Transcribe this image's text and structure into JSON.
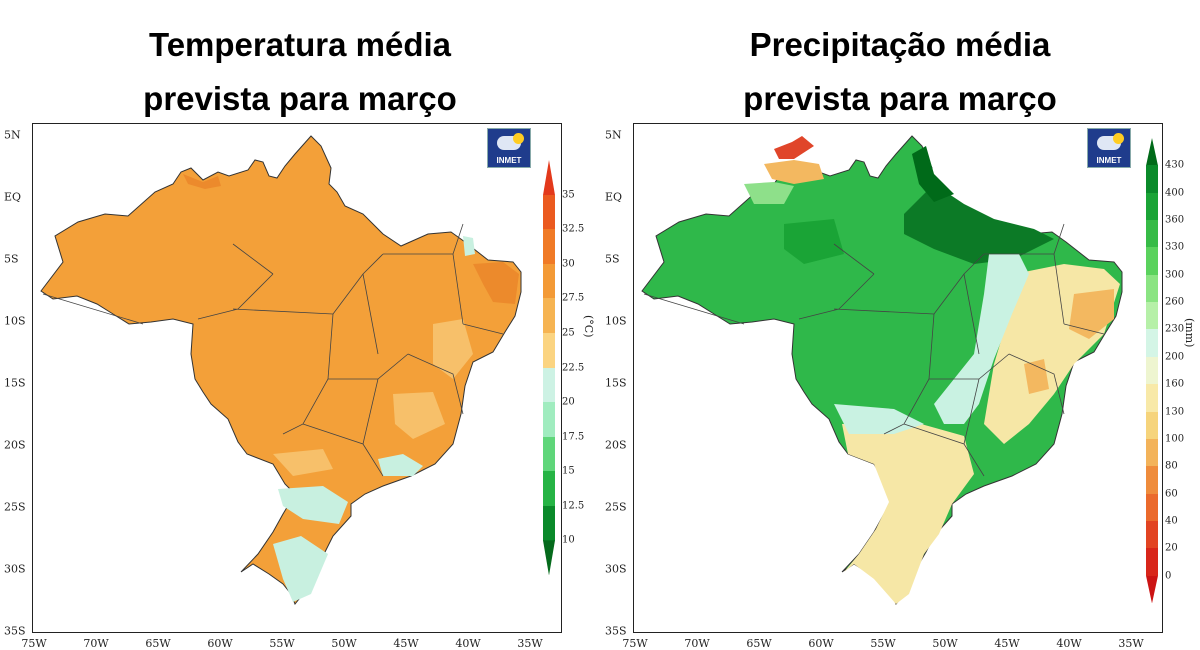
{
  "panels": [
    {
      "title_line1": "Temperatura média",
      "title_line2": "prevista para março",
      "logo_text": "INMET",
      "unit": "(°C)",
      "y_ticks": [
        "5N",
        "EQ",
        "5S",
        "10S",
        "15S",
        "20S",
        "25S",
        "30S",
        "35S"
      ],
      "x_ticks": [
        "75W",
        "70W",
        "65W",
        "60W",
        "55W",
        "50W",
        "45W",
        "40W",
        "35W"
      ],
      "legend": {
        "labels": [
          "35",
          "32.5",
          "30",
          "27.5",
          "25",
          "22.5",
          "20",
          "17.5",
          "15",
          "12.5",
          "10"
        ],
        "colors": [
          "#e3391b",
          "#eb5a1f",
          "#f07a26",
          "#f39a36",
          "#f6b452",
          "#fbd481",
          "#cdf2e4",
          "#a0ecbf",
          "#5fd67a",
          "#26b445",
          "#0a8a2a",
          "#056a1c"
        ]
      },
      "map_colors": {
        "base": "#f3a039",
        "dark": "#ec8a2c",
        "light": "#f7c06a",
        "cool": "#c8f0e0"
      }
    },
    {
      "title_line1": "Precipitação média",
      "title_line2": "prevista para março",
      "logo_text": "INMET",
      "unit": "(mm)",
      "y_ticks": [
        "5N",
        "EQ",
        "5S",
        "10S",
        "15S",
        "20S",
        "25S",
        "30S",
        "35S"
      ],
      "x_ticks": [
        "75W",
        "70W",
        "65W",
        "60W",
        "55W",
        "50W",
        "45W",
        "40W",
        "35W"
      ],
      "legend": {
        "labels": [
          "430",
          "400",
          "360",
          "330",
          "300",
          "260",
          "230",
          "200",
          "160",
          "130",
          "100",
          "80",
          "60",
          "40",
          "20",
          "0"
        ],
        "colors": [
          "#006a19",
          "#0a8a2a",
          "#1aa436",
          "#36bb46",
          "#5ad25d",
          "#8ae482",
          "#b6f0a8",
          "#d4f5e6",
          "#eef5d0",
          "#f8e9a8",
          "#f6d47c",
          "#f3b35a",
          "#ef8c3c",
          "#eb6a2c",
          "#e24422",
          "#d8261a",
          "#cc1414"
        ]
      },
      "map_colors": {
        "base": "#2fb84a",
        "dark": "#0c7a26",
        "light": "#8ee08a",
        "cool": "#c9f2e2",
        "dry": "#f6e7a6",
        "arid": "#f3b860",
        "red": "#e0452a"
      }
    }
  ]
}
